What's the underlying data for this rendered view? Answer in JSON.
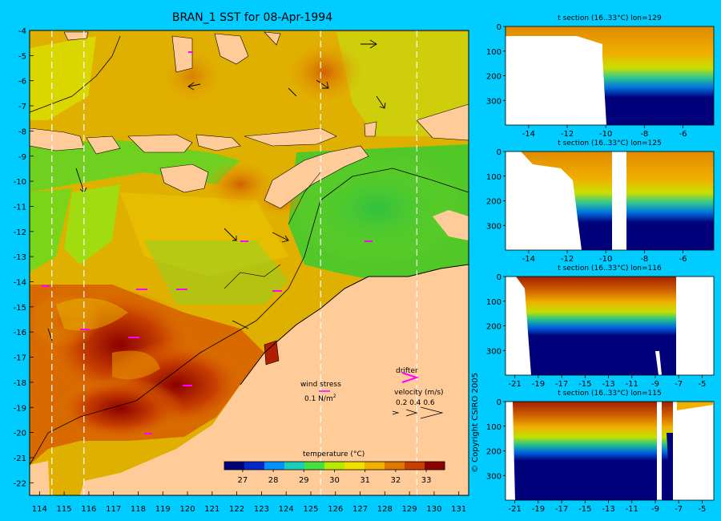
{
  "title": "BRAN_1 SST for 08-Apr-1994",
  "copyright": "© Copyright CSIRO 2005",
  "map": {
    "lon_ticks": [
      "114",
      "115",
      "116",
      "117",
      "118",
      "119",
      "120",
      "121",
      "122",
      "123",
      "124",
      "125",
      "126",
      "127",
      "128",
      "129",
      "130",
      "131"
    ],
    "lat_ticks": [
      "-4",
      "-5",
      "-6",
      "-7",
      "-8",
      "-9",
      "-10",
      "-11",
      "-12",
      "-13",
      "-14",
      "-15",
      "-16",
      "-17",
      "-18",
      "-19",
      "-20",
      "-21",
      "-22"
    ],
    "section_lines_lon": [
      114.5,
      115.8,
      125.4,
      129.3
    ],
    "wind_label": "wind stress",
    "wind_value": "0.1 N/m",
    "wind_exp": "2",
    "drifter_label": "drifter",
    "velocity_label": "velocity (m/s)",
    "velocity_values": "0.2 0.4 0.6"
  },
  "colorbar": {
    "title": "temperature (°C)",
    "ticks": [
      "27",
      "28",
      "29",
      "30",
      "31",
      "32",
      "33"
    ],
    "colors": [
      "#00007a",
      "#0028c8",
      "#0090ff",
      "#18d0b8",
      "#46e040",
      "#b8e800",
      "#f0e000",
      "#f0b000",
      "#e07800",
      "#c84000",
      "#8c0000"
    ]
  },
  "sections": [
    {
      "title": "t section (16..33°C) lon=129",
      "x_ticks": [
        "-14",
        "-12",
        "-10",
        "-8",
        "-6"
      ],
      "y_ticks": [
        "0",
        "100",
        "200",
        "300"
      ]
    },
    {
      "title": "t section (16..33°C) lon=125",
      "x_ticks": [
        "-14",
        "-12",
        "-10",
        "-8",
        "-6"
      ],
      "y_ticks": [
        "0",
        "100",
        "200",
        "300"
      ]
    },
    {
      "title": "t section (16..33°C) lon=116",
      "x_ticks": [
        "-21",
        "-19",
        "-17",
        "-15",
        "-13",
        "-11",
        "-9",
        "-7",
        "-5"
      ],
      "y_ticks": [
        "0",
        "100",
        "200",
        "300"
      ]
    },
    {
      "title": "t section (16..33°C) lon=115",
      "x_ticks": [
        "-21",
        "-19",
        "-17",
        "-15",
        "-13",
        "-11",
        "-9",
        "-7",
        "-5"
      ],
      "y_ticks": [
        "0",
        "100",
        "200",
        "300"
      ]
    }
  ]
}
